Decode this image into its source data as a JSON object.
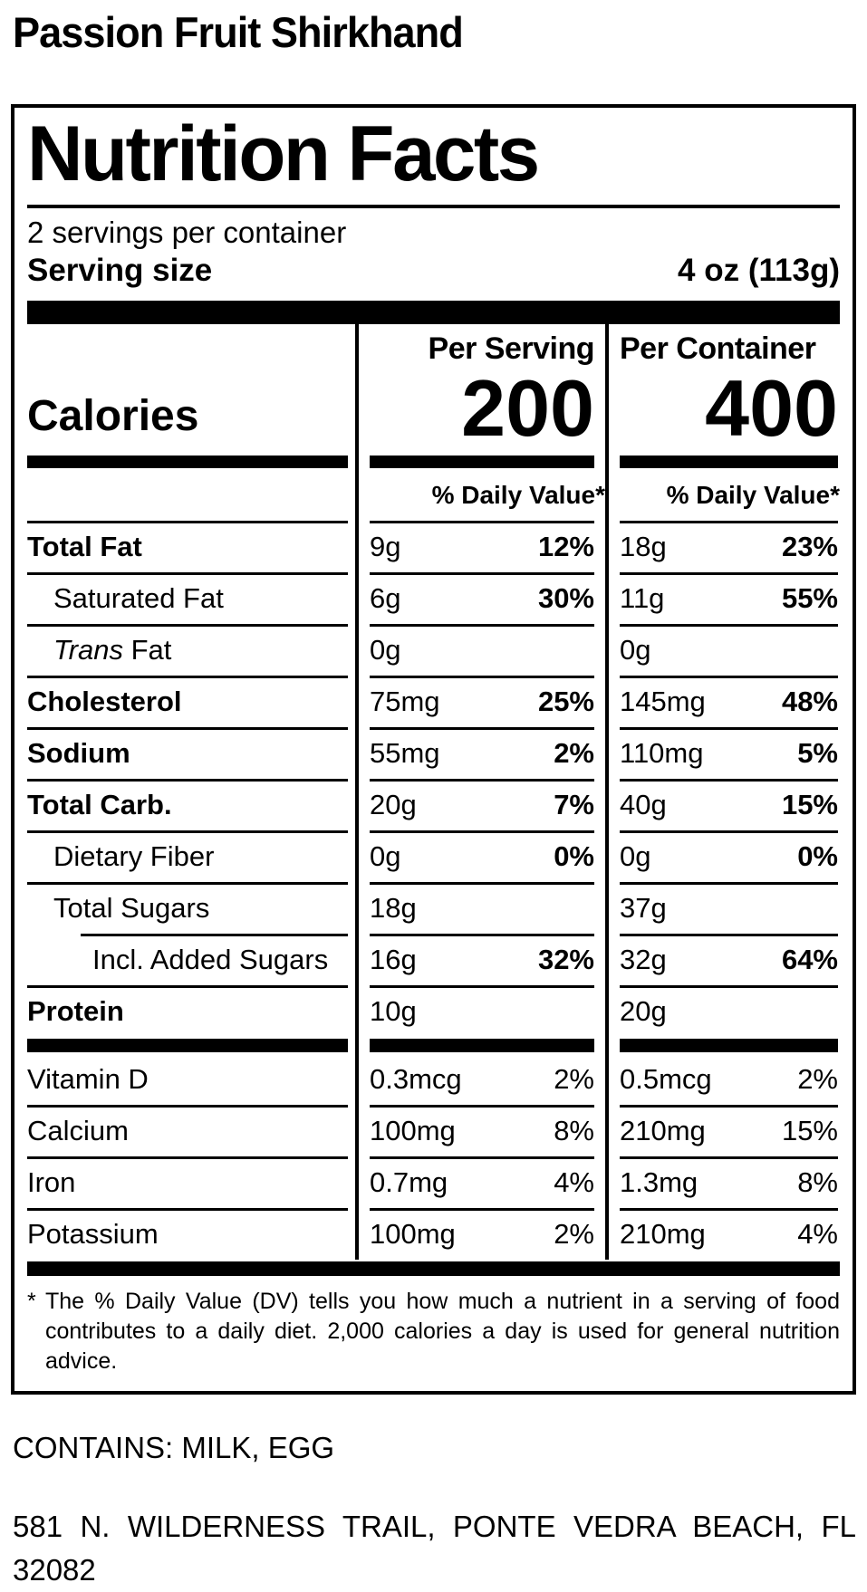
{
  "product_title": "Passion Fruit Shirkhand",
  "label": {
    "title": "Nutrition Facts",
    "servings_per_container": "2 servings per container",
    "serving_size_label": "Serving size",
    "serving_size_value": "4 oz (113g)",
    "calories_label": "Calories",
    "columns": {
      "serving_header": "Per Serving",
      "container_header": "Per Container",
      "serving_calories": "200",
      "container_calories": "400",
      "daily_value_header": "% Daily Value*"
    },
    "rows": [
      {
        "name": "Total Fat",
        "bold": true,
        "indent": 0,
        "rule": "full",
        "serving": {
          "amount": "9g",
          "dv": "12%"
        },
        "container": {
          "amount": "18g",
          "dv": "23%"
        }
      },
      {
        "name": "Saturated Fat",
        "bold": false,
        "indent": 1,
        "rule": "full",
        "serving": {
          "amount": "6g",
          "dv": "30%"
        },
        "container": {
          "amount": "11g",
          "dv": "55%"
        }
      },
      {
        "name_italic": "Trans",
        "name": " Fat",
        "bold": false,
        "indent": 1,
        "rule": "full",
        "serving": {
          "amount": "0g",
          "dv": ""
        },
        "container": {
          "amount": "0g",
          "dv": ""
        }
      },
      {
        "name": "Cholesterol",
        "bold": true,
        "indent": 0,
        "rule": "full",
        "serving": {
          "amount": "75mg",
          "dv": "25%"
        },
        "container": {
          "amount": "145mg",
          "dv": "48%"
        }
      },
      {
        "name": "Sodium",
        "bold": true,
        "indent": 0,
        "rule": "full",
        "serving": {
          "amount": "55mg",
          "dv": "2%"
        },
        "container": {
          "amount": "110mg",
          "dv": "5%"
        }
      },
      {
        "name": "Total Carb.",
        "bold": true,
        "indent": 0,
        "rule": "full",
        "serving": {
          "amount": "20g",
          "dv": "7%"
        },
        "container": {
          "amount": "40g",
          "dv": "15%"
        }
      },
      {
        "name": "Dietary Fiber",
        "bold": false,
        "indent": 1,
        "rule": "full",
        "serving": {
          "amount": "0g",
          "dv": "0%"
        },
        "container": {
          "amount": "0g",
          "dv": "0%"
        }
      },
      {
        "name": "Total Sugars",
        "bold": false,
        "indent": 1,
        "rule": "full",
        "serving": {
          "amount": "18g",
          "dv": ""
        },
        "container": {
          "amount": "37g",
          "dv": ""
        }
      },
      {
        "name": "Incl. Added Sugars",
        "bold": false,
        "indent": 2,
        "rule": "indent",
        "serving": {
          "amount": "16g",
          "dv": "32%"
        },
        "container": {
          "amount": "32g",
          "dv": "64%"
        }
      },
      {
        "name": "Protein",
        "bold": true,
        "indent": 0,
        "rule": "full",
        "serving": {
          "amount": "10g",
          "dv": ""
        },
        "container": {
          "amount": "20g",
          "dv": ""
        }
      }
    ],
    "micronutrients": [
      {
        "name": "Vitamin D",
        "rule": "none",
        "serving": {
          "amount": "0.3mcg",
          "dv": "2%"
        },
        "container": {
          "amount": "0.5mcg",
          "dv": "2%"
        }
      },
      {
        "name": "Calcium",
        "rule": "full",
        "serving": {
          "amount": "100mg",
          "dv": "8%"
        },
        "container": {
          "amount": "210mg",
          "dv": "15%"
        }
      },
      {
        "name": "Iron",
        "rule": "full",
        "serving": {
          "amount": "0.7mg",
          "dv": "4%"
        },
        "container": {
          "amount": "1.3mg",
          "dv": "8%"
        }
      },
      {
        "name": "Potassium",
        "rule": "full",
        "serving": {
          "amount": "100mg",
          "dv": "2%"
        },
        "container": {
          "amount": "210mg",
          "dv": "4%"
        }
      }
    ],
    "footnote_marker": "*",
    "footnote": "The % Daily Value (DV) tells you how much a nutrient in a serving of food contributes to a daily diet. 2,000 calories a day is used for general nutrition advice."
  },
  "contains_statement": "CONTAINS: MILK, EGG",
  "address_lines": [
    "581 N. WILDERNESS TRAIL, PONTE VEDRA BEACH, FL",
    "32082"
  ],
  "colors": {
    "ink": "#000000",
    "paper": "#ffffff"
  }
}
